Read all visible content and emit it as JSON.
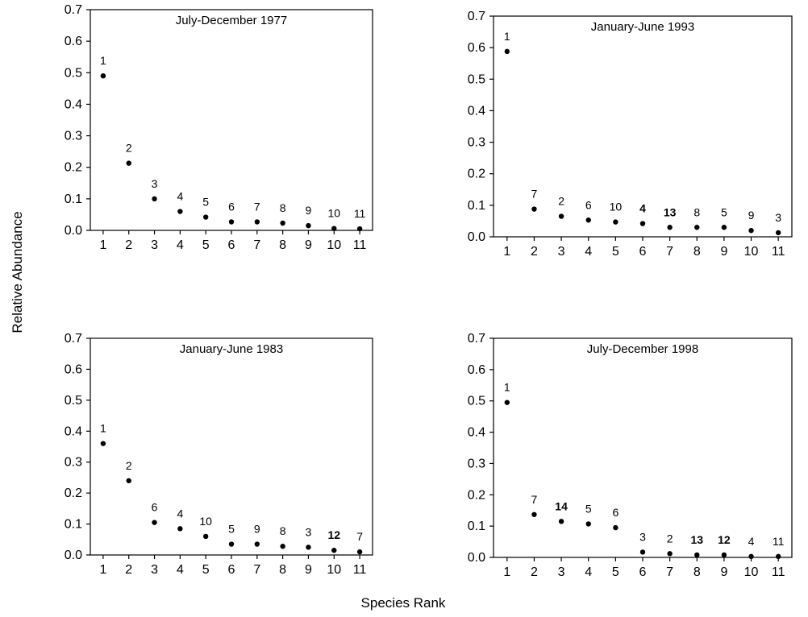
{
  "figure": {
    "ylabel": "Relative Abundance",
    "xlabel": "Species Rank"
  },
  "chart_data": [
    {
      "type": "scatter",
      "title": "July-December 1977",
      "x": [
        1,
        2,
        3,
        4,
        5,
        6,
        7,
        8,
        9,
        10,
        11
      ],
      "y": [
        0.49,
        0.213,
        0.1,
        0.06,
        0.042,
        0.027,
        0.027,
        0.023,
        0.015,
        0.006,
        0.005
      ],
      "point_labels": [
        "1",
        "2",
        "3",
        "4",
        "5",
        "6",
        "7",
        "8",
        "9",
        "10",
        "11"
      ],
      "bold_labels": [],
      "xlim": [
        0.5,
        11.5
      ],
      "ylim": [
        0,
        0.7
      ],
      "yticks": [
        "0.0",
        "0.1",
        "0.2",
        "0.3",
        "0.4",
        "0.5",
        "0.6",
        "0.7"
      ],
      "xticks": [
        "1",
        "2",
        "3",
        "4",
        "5",
        "6",
        "7",
        "8",
        "9",
        "10",
        "11"
      ],
      "grid": false
    },
    {
      "type": "scatter",
      "title": "January-June 1993",
      "x": [
        1,
        2,
        3,
        4,
        5,
        6,
        7,
        8,
        9,
        10,
        11
      ],
      "y": [
        0.588,
        0.088,
        0.065,
        0.053,
        0.047,
        0.042,
        0.03,
        0.03,
        0.03,
        0.02,
        0.013
      ],
      "point_labels": [
        "1",
        "7",
        "2",
        "6",
        "10",
        "4",
        "13",
        "8",
        "5",
        "9",
        "3"
      ],
      "bold_labels": [
        "4",
        "13"
      ],
      "xlim": [
        0.5,
        11.5
      ],
      "ylim": [
        0,
        0.7
      ],
      "yticks": [
        "0.0",
        "0.1",
        "0.2",
        "0.3",
        "0.4",
        "0.5",
        "0.6",
        "0.7"
      ],
      "xticks": [
        "1",
        "2",
        "3",
        "4",
        "5",
        "6",
        "7",
        "8",
        "9",
        "10",
        "11"
      ],
      "grid": false
    },
    {
      "type": "scatter",
      "title": "January-June 1983",
      "x": [
        1,
        2,
        3,
        4,
        5,
        6,
        7,
        8,
        9,
        10,
        11
      ],
      "y": [
        0.36,
        0.24,
        0.105,
        0.085,
        0.06,
        0.035,
        0.035,
        0.028,
        0.025,
        0.015,
        0.01
      ],
      "point_labels": [
        "1",
        "2",
        "6",
        "4",
        "10",
        "5",
        "9",
        "8",
        "3",
        "12",
        "7"
      ],
      "bold_labels": [
        "12"
      ],
      "xlim": [
        0.5,
        11.5
      ],
      "ylim": [
        0,
        0.7
      ],
      "yticks": [
        "0.0",
        "0.1",
        "0.2",
        "0.3",
        "0.4",
        "0.5",
        "0.6",
        "0.7"
      ],
      "xticks": [
        "1",
        "2",
        "3",
        "4",
        "5",
        "6",
        "7",
        "8",
        "9",
        "10",
        "11"
      ],
      "grid": false
    },
    {
      "type": "scatter",
      "title": "July-December 1998",
      "x": [
        1,
        2,
        3,
        4,
        5,
        6,
        7,
        8,
        9,
        10,
        11
      ],
      "y": [
        0.495,
        0.137,
        0.115,
        0.107,
        0.095,
        0.017,
        0.012,
        0.008,
        0.008,
        0.003,
        0.003
      ],
      "point_labels": [
        "1",
        "7",
        "14",
        "5",
        "6",
        "3",
        "2",
        "13",
        "12",
        "4",
        "11"
      ],
      "bold_labels": [
        "14",
        "13",
        "12"
      ],
      "xlim": [
        0.5,
        11.5
      ],
      "ylim": [
        0,
        0.7
      ],
      "yticks": [
        "0.0",
        "0.1",
        "0.2",
        "0.3",
        "0.4",
        "0.5",
        "0.6",
        "0.7"
      ],
      "xticks": [
        "1",
        "2",
        "3",
        "4",
        "5",
        "6",
        "7",
        "8",
        "9",
        "10",
        "11"
      ],
      "grid": false
    }
  ]
}
